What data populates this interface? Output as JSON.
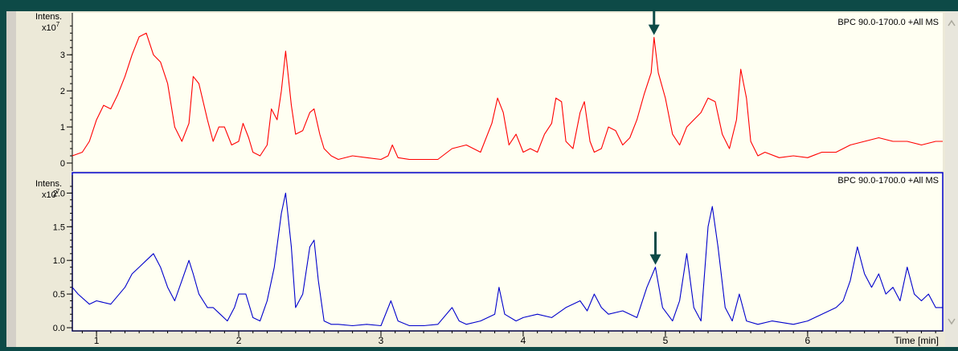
{
  "colors": {
    "frame": "#0d4a47",
    "panel_bg": "#fffff2",
    "top_trace": "#ff0000",
    "bottom_trace": "#0000cc",
    "arrow": "#0d4a47",
    "axis": "#000000"
  },
  "chart_data": [
    {
      "type": "line",
      "panel": "top",
      "legend": "BPC 90.0-1700.0 +All MS",
      "y_label_top": "Intens.",
      "y_label_exp": "x10",
      "y_label_exp_sup": "7",
      "x_range": [
        0.83,
        6.95
      ],
      "y_range": [
        0,
        3.85
      ],
      "y_ticks": [
        0,
        1,
        2,
        3
      ],
      "y_tick_labels": [
        "0",
        "1",
        "2",
        "3"
      ],
      "marker": {
        "x": 4.92,
        "y": 3.48
      },
      "series": [
        {
          "color": "#ff0000",
          "x": [
            0.83,
            0.9,
            0.95,
            1.0,
            1.05,
            1.1,
            1.15,
            1.2,
            1.25,
            1.3,
            1.35,
            1.4,
            1.45,
            1.5,
            1.55,
            1.6,
            1.65,
            1.68,
            1.72,
            1.78,
            1.82,
            1.86,
            1.9,
            1.95,
            2.0,
            2.03,
            2.07,
            2.1,
            2.15,
            2.2,
            2.23,
            2.27,
            2.3,
            2.33,
            2.37,
            2.4,
            2.45,
            2.5,
            2.53,
            2.57,
            2.6,
            2.65,
            2.7,
            2.8,
            2.9,
            3.0,
            3.05,
            3.08,
            3.12,
            3.2,
            3.3,
            3.4,
            3.5,
            3.6,
            3.7,
            3.78,
            3.82,
            3.86,
            3.9,
            3.95,
            4.0,
            4.05,
            4.1,
            4.15,
            4.2,
            4.23,
            4.27,
            4.3,
            4.35,
            4.4,
            4.43,
            4.47,
            4.5,
            4.55,
            4.6,
            4.65,
            4.7,
            4.75,
            4.8,
            4.85,
            4.9,
            4.92,
            4.95,
            5.0,
            5.05,
            5.1,
            5.15,
            5.2,
            5.25,
            5.3,
            5.35,
            5.4,
            5.45,
            5.5,
            5.53,
            5.57,
            5.6,
            5.65,
            5.7,
            5.8,
            5.9,
            6.0,
            6.1,
            6.2,
            6.3,
            6.4,
            6.5,
            6.6,
            6.7,
            6.8,
            6.9,
            6.95
          ],
          "y": [
            0.2,
            0.3,
            0.6,
            1.2,
            1.6,
            1.5,
            1.9,
            2.4,
            3.0,
            3.5,
            3.6,
            3.0,
            2.8,
            2.2,
            1.0,
            0.6,
            1.1,
            2.4,
            2.2,
            1.2,
            0.6,
            1.0,
            1.0,
            0.5,
            0.6,
            1.1,
            0.7,
            0.3,
            0.2,
            0.5,
            1.5,
            1.2,
            2.0,
            3.1,
            1.6,
            0.8,
            0.9,
            1.4,
            1.5,
            0.8,
            0.4,
            0.2,
            0.1,
            0.2,
            0.15,
            0.1,
            0.2,
            0.5,
            0.15,
            0.1,
            0.1,
            0.1,
            0.4,
            0.5,
            0.3,
            1.1,
            1.8,
            1.4,
            0.5,
            0.8,
            0.3,
            0.4,
            0.3,
            0.8,
            1.1,
            1.8,
            1.7,
            0.6,
            0.4,
            1.4,
            1.7,
            0.6,
            0.3,
            0.4,
            1.0,
            0.9,
            0.5,
            0.7,
            1.2,
            1.9,
            2.5,
            3.48,
            2.5,
            1.8,
            0.8,
            0.5,
            1.0,
            1.2,
            1.4,
            1.8,
            1.7,
            0.8,
            0.4,
            1.2,
            2.6,
            1.8,
            0.6,
            0.2,
            0.3,
            0.15,
            0.2,
            0.15,
            0.3,
            0.3,
            0.5,
            0.6,
            0.7,
            0.6,
            0.6,
            0.5,
            0.6,
            0.6
          ]
        }
      ]
    },
    {
      "type": "line",
      "panel": "bottom",
      "legend": "BPC 90.0-1700.0 +All MS",
      "y_label_top": "Intens.",
      "y_label_exp": "x10",
      "y_label_exp_sup": "7",
      "x_label": "Time [min]",
      "x_range": [
        0.83,
        6.95
      ],
      "y_range": [
        0,
        2.1
      ],
      "x_ticks": [
        1,
        2,
        3,
        4,
        5,
        6
      ],
      "x_tick_labels": [
        "1",
        "2",
        "3",
        "4",
        "5",
        "6"
      ],
      "y_ticks": [
        0,
        0.5,
        1.0,
        1.5,
        2.0
      ],
      "y_tick_labels": [
        "0.0",
        "0.5",
        "1.0",
        "1.5",
        "2.0"
      ],
      "marker": {
        "x": 4.93,
        "y": 0.9
      },
      "series": [
        {
          "color": "#0000cc",
          "x": [
            0.83,
            0.87,
            0.95,
            1.0,
            1.1,
            1.2,
            1.25,
            1.3,
            1.35,
            1.4,
            1.45,
            1.5,
            1.55,
            1.6,
            1.65,
            1.68,
            1.72,
            1.78,
            1.82,
            1.87,
            1.92,
            1.97,
            2.0,
            2.05,
            2.1,
            2.15,
            2.2,
            2.25,
            2.3,
            2.33,
            2.37,
            2.4,
            2.45,
            2.5,
            2.53,
            2.56,
            2.6,
            2.65,
            2.7,
            2.8,
            2.9,
            3.0,
            3.07,
            3.12,
            3.2,
            3.3,
            3.4,
            3.5,
            3.55,
            3.6,
            3.7,
            3.8,
            3.83,
            3.87,
            3.95,
            4.0,
            4.1,
            4.2,
            4.3,
            4.4,
            4.45,
            4.5,
            4.55,
            4.6,
            4.7,
            4.8,
            4.87,
            4.93,
            4.98,
            5.05,
            5.1,
            5.15,
            5.2,
            5.25,
            5.3,
            5.33,
            5.37,
            5.42,
            5.47,
            5.52,
            5.57,
            5.65,
            5.75,
            5.9,
            6.0,
            6.1,
            6.2,
            6.25,
            6.3,
            6.35,
            6.4,
            6.45,
            6.5,
            6.55,
            6.6,
            6.65,
            6.7,
            6.75,
            6.8,
            6.85,
            6.9,
            6.95
          ],
          "y": [
            0.6,
            0.5,
            0.35,
            0.4,
            0.35,
            0.6,
            0.8,
            0.9,
            1.0,
            1.1,
            0.9,
            0.6,
            0.4,
            0.7,
            1.0,
            0.8,
            0.5,
            0.3,
            0.3,
            0.2,
            0.1,
            0.3,
            0.5,
            0.5,
            0.15,
            0.1,
            0.4,
            0.9,
            1.7,
            2.0,
            1.2,
            0.3,
            0.5,
            1.2,
            1.3,
            0.7,
            0.1,
            0.05,
            0.05,
            0.03,
            0.05,
            0.03,
            0.4,
            0.1,
            0.03,
            0.03,
            0.05,
            0.3,
            0.1,
            0.05,
            0.1,
            0.2,
            0.6,
            0.2,
            0.1,
            0.15,
            0.2,
            0.15,
            0.3,
            0.4,
            0.25,
            0.5,
            0.3,
            0.2,
            0.25,
            0.15,
            0.6,
            0.9,
            0.3,
            0.1,
            0.4,
            1.1,
            0.3,
            0.1,
            1.5,
            1.8,
            1.2,
            0.3,
            0.1,
            0.5,
            0.1,
            0.05,
            0.1,
            0.05,
            0.1,
            0.2,
            0.3,
            0.4,
            0.7,
            1.2,
            0.8,
            0.6,
            0.8,
            0.5,
            0.6,
            0.4,
            0.9,
            0.5,
            0.4,
            0.5,
            0.3,
            0.3
          ]
        }
      ]
    }
  ]
}
